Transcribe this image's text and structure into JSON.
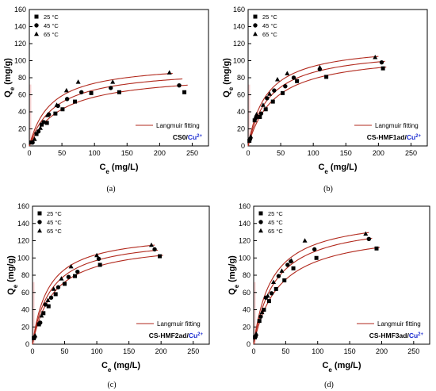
{
  "colors": {
    "fit": "#b22a1e",
    "highlight": "#f7d0d0",
    "cu_text": "#1a2bd0",
    "axis": "#000000"
  },
  "legend_entries": [
    "25 °C",
    "45 °C",
    "65 °C"
  ],
  "fit_label": "Langmuir fitting",
  "chart_data": [
    {
      "type": "scatter",
      "panel_tag": "(a)",
      "sample_label": "CS0/",
      "ion_label": "Cu",
      "ion_charge": "2+",
      "xlabel": "C",
      "xlabel_sub": "e",
      "xlabel_unit": " (mg/L)",
      "ylabel": "Q",
      "ylabel_sub": "e",
      "ylabel_unit": " (mg/g)",
      "xlim": [
        0,
        275
      ],
      "ylim": [
        0,
        160
      ],
      "xticks": [
        0,
        50,
        100,
        150,
        200,
        250
      ],
      "yticks": [
        0,
        20,
        40,
        60,
        80,
        100,
        120,
        140,
        160
      ],
      "legend_position": "top-left",
      "series": [
        {
          "name": "25 °C",
          "marker": "square",
          "x": [
            3,
            11,
            19,
            27,
            40,
            51,
            70,
            95,
            138,
            238
          ],
          "y": [
            4,
            14,
            25,
            27,
            38,
            43,
            52,
            62,
            63,
            63
          ],
          "fit": {
            "qmax": 86,
            "kl": 0.02
          }
        },
        {
          "name": "45 °C",
          "marker": "circle",
          "x": [
            5,
            14,
            22,
            30,
            44,
            58,
            80,
            125,
            230
          ],
          "y": [
            4,
            17,
            28,
            37,
            47,
            55,
            63,
            68,
            71
          ],
          "fit": {
            "qmax": 92,
            "kl": 0.025
          }
        },
        {
          "name": "65 °C",
          "marker": "triangle",
          "x": [
            8,
            17,
            28,
            42,
            57,
            75,
            128,
            215
          ],
          "y": [
            8,
            21,
            36,
            48,
            65,
            75,
            75,
            86
          ],
          "fit": {
            "qmax": 98,
            "kl": 0.03
          }
        }
      ]
    },
    {
      "type": "scatter",
      "panel_tag": "(b)",
      "sample_label": "CS-HMF1ad/",
      "ion_label": "Cu",
      "ion_charge": "2+",
      "xlabel": "C",
      "xlabel_sub": "e",
      "xlabel_unit": " (mg/L)",
      "ylabel": "Q",
      "ylabel_sub": "e",
      "ylabel_unit": " (mg/g)",
      "xlim": [
        0,
        275
      ],
      "ylim": [
        0,
        160
      ],
      "xticks": [
        0,
        50,
        100,
        150,
        200,
        250
      ],
      "yticks": [
        0,
        20,
        40,
        60,
        80,
        100,
        120,
        140,
        160
      ],
      "legend_position": "top-left",
      "series": [
        {
          "name": "25 °C",
          "marker": "square",
          "x": [
            2,
            10,
            18,
            27,
            38,
            53,
            75,
            120,
            207
          ],
          "y": [
            6,
            30,
            34,
            43,
            52,
            62,
            76,
            81,
            91
          ],
          "fit": {
            "qmax": 110,
            "kl": 0.025
          }
        },
        {
          "name": "45 °C",
          "marker": "circle",
          "x": [
            3,
            12,
            20,
            29,
            40,
            57,
            70,
            110,
            205
          ],
          "y": [
            8,
            33,
            38,
            56,
            65,
            70,
            80,
            90,
            98
          ],
          "fit": {
            "qmax": 115,
            "kl": 0.03
          }
        },
        {
          "name": "65 °C",
          "marker": "triangle",
          "x": [
            4,
            13,
            23,
            33,
            45,
            60,
            110,
            195
          ],
          "y": [
            11,
            37,
            48,
            61,
            78,
            85,
            92,
            104
          ],
          "fit": {
            "qmax": 120,
            "kl": 0.035
          }
        }
      ]
    },
    {
      "type": "scatter",
      "panel_tag": "(c)",
      "sample_label": "CS-HMF2ad/",
      "ion_label": "Cu",
      "ion_charge": "2+",
      "xlabel": "C",
      "xlabel_sub": "e",
      "xlabel_unit": " (mg/L)",
      "ylabel": "Q",
      "ylabel_sub": "e",
      "ylabel_unit": " (mg/g)",
      "xlim": [
        0,
        275
      ],
      "ylim": [
        0,
        160
      ],
      "xticks": [
        0,
        50,
        100,
        150,
        200,
        250
      ],
      "yticks": [
        0,
        20,
        40,
        60,
        80,
        100,
        120,
        140,
        160
      ],
      "legend_position": "top-left",
      "series": [
        {
          "name": "25 °C",
          "marker": "square",
          "x": [
            2,
            10,
            17,
            25,
            36,
            50,
            66,
            105,
            198
          ],
          "y": [
            7,
            23,
            36,
            44,
            58,
            70,
            79,
            92,
            102
          ],
          "fit": {
            "qmax": 120,
            "kl": 0.03
          }
        },
        {
          "name": "45 °C",
          "marker": "circle",
          "x": [
            3,
            12,
            20,
            29,
            40,
            56,
            70,
            103,
            190
          ],
          "y": [
            8,
            25,
            46,
            54,
            66,
            78,
            84,
            99,
            110
          ],
          "fit": {
            "qmax": 125,
            "kl": 0.035
          }
        },
        {
          "name": "65 °C",
          "marker": "triangle",
          "x": [
            4,
            14,
            24,
            33,
            45,
            60,
            100,
            185
          ],
          "y": [
            10,
            33,
            51,
            64,
            76,
            90,
            103,
            115
          ],
          "fit": {
            "qmax": 130,
            "kl": 0.04
          }
        }
      ]
    },
    {
      "type": "scatter",
      "panel_tag": "(d)",
      "sample_label": "CS-HMF3ad/",
      "ion_label": "Cu",
      "ion_charge": "2+",
      "xlabel": "C",
      "xlabel_sub": "e",
      "xlabel_unit": " (mg/L)",
      "ylabel": "Q",
      "ylabel_sub": "e",
      "ylabel_unit": " (mg/g)",
      "xlim": [
        0,
        275
      ],
      "ylim": [
        0,
        160
      ],
      "xticks": [
        0,
        50,
        100,
        150,
        200,
        250
      ],
      "yticks": [
        0,
        20,
        40,
        60,
        80,
        100,
        120,
        140,
        160
      ],
      "legend_position": "top-left",
      "series": [
        {
          "name": "25 °C",
          "marker": "square",
          "x": [
            2,
            9,
            16,
            24,
            35,
            48,
            62,
            98,
            192
          ],
          "y": [
            8,
            27,
            40,
            50,
            64,
            74,
            88,
            100,
            111
          ],
          "fit": {
            "qmax": 135,
            "kl": 0.025
          }
        },
        {
          "name": "45 °C",
          "marker": "circle",
          "x": [
            3,
            11,
            19,
            28,
            39,
            53,
            58,
            95,
            180
          ],
          "y": [
            9,
            32,
            54,
            59,
            79,
            92,
            96,
            110,
            122
          ],
          "fit": {
            "qmax": 145,
            "kl": 0.03
          }
        },
        {
          "name": "65 °C",
          "marker": "triangle",
          "x": [
            4,
            13,
            22,
            31,
            44,
            59,
            80,
            175
          ],
          "y": [
            12,
            37,
            56,
            72,
            85,
            97,
            120,
            128
          ],
          "fit": {
            "qmax": 150,
            "kl": 0.035
          }
        }
      ]
    }
  ]
}
